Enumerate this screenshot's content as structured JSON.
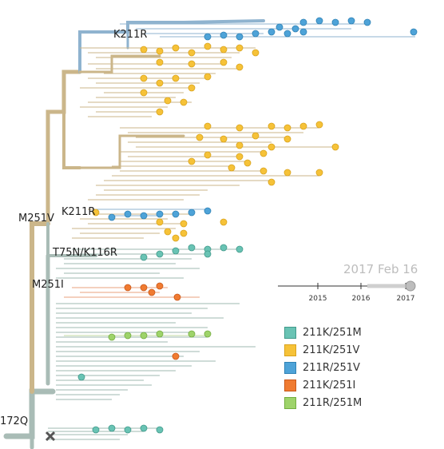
{
  "mutations": {
    "k211r_top": "K211R",
    "m251v": "M251V",
    "k211r_mid": "K211R",
    "t75n_k116r": "T75N/K116R",
    "m251i": "M251I",
    "root": "172Q"
  },
  "timeline": {
    "date": "2017 Feb 16",
    "ticks": [
      "2015",
      "2016",
      "2017"
    ]
  },
  "legend": [
    {
      "label": "211K/251M",
      "color": "#69c3b4"
    },
    {
      "label": "211K/251V",
      "color": "#f6c238"
    },
    {
      "label": "211R/251V",
      "color": "#4ea3d8"
    },
    {
      "label": "211K/251I",
      "color": "#f07b31"
    },
    {
      "label": "211R/251M",
      "color": "#9ed36a"
    }
  ],
  "colors": {
    "branch_v": "#cbb68a",
    "branch_m": "#9fb9b1",
    "branch_r": "#8fb3cf",
    "branch_i": "#e9a27d"
  }
}
